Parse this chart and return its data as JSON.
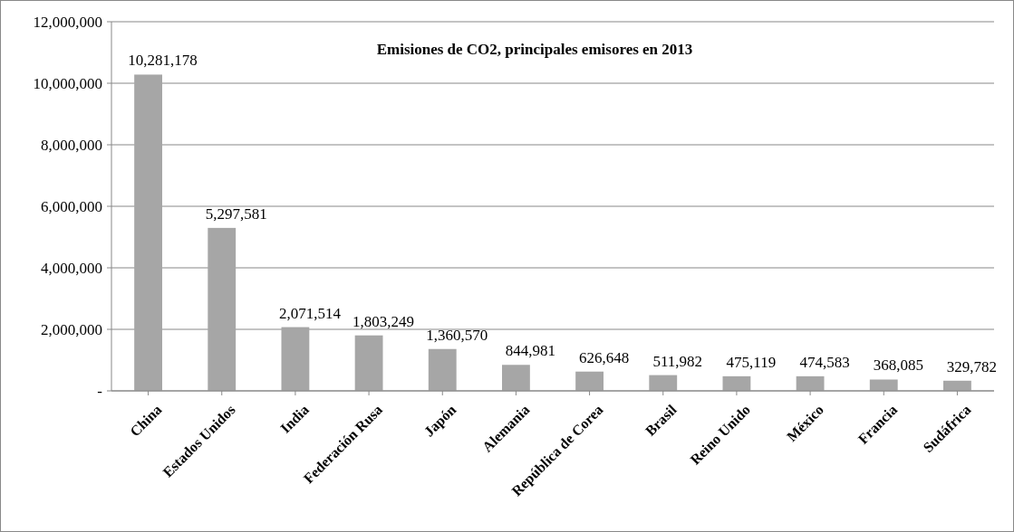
{
  "chart_data": {
    "type": "bar",
    "title": "Emisiones de CO2, principales emisores en 2013",
    "categories": [
      "China",
      "Estados Unidos",
      "India",
      "Federación Rusa",
      "Japón",
      "Alemania",
      "República de Corea",
      "Brasil",
      "Reino Unido",
      "México",
      "Francia",
      "Sudáfrica"
    ],
    "values": [
      10281178,
      5297581,
      2071514,
      1803249,
      1360570,
      844981,
      626648,
      511982,
      475119,
      474583,
      368085,
      329782
    ],
    "color": "#a6a6a6",
    "ylim": [
      0,
      12000000
    ],
    "yticks": [
      {
        "value": 0,
        "label": "-"
      },
      {
        "value": 2000000,
        "label": "2,000,000"
      },
      {
        "value": 4000000,
        "label": "4,000,000"
      },
      {
        "value": 6000000,
        "label": "6,000,000"
      },
      {
        "value": 8000000,
        "label": "8,000,000"
      },
      {
        "value": 10000000,
        "label": "10,000,000"
      },
      {
        "value": 12000000,
        "label": "12,000,000"
      }
    ],
    "value_labels": [
      "10,281,178",
      "5,297,581",
      "2,071,514",
      "1,803,249",
      "1,360,570",
      "844,981",
      "626,648",
      "511,982",
      "475,119",
      "474,583",
      "368,085",
      "329,782"
    ],
    "grid": "y"
  }
}
